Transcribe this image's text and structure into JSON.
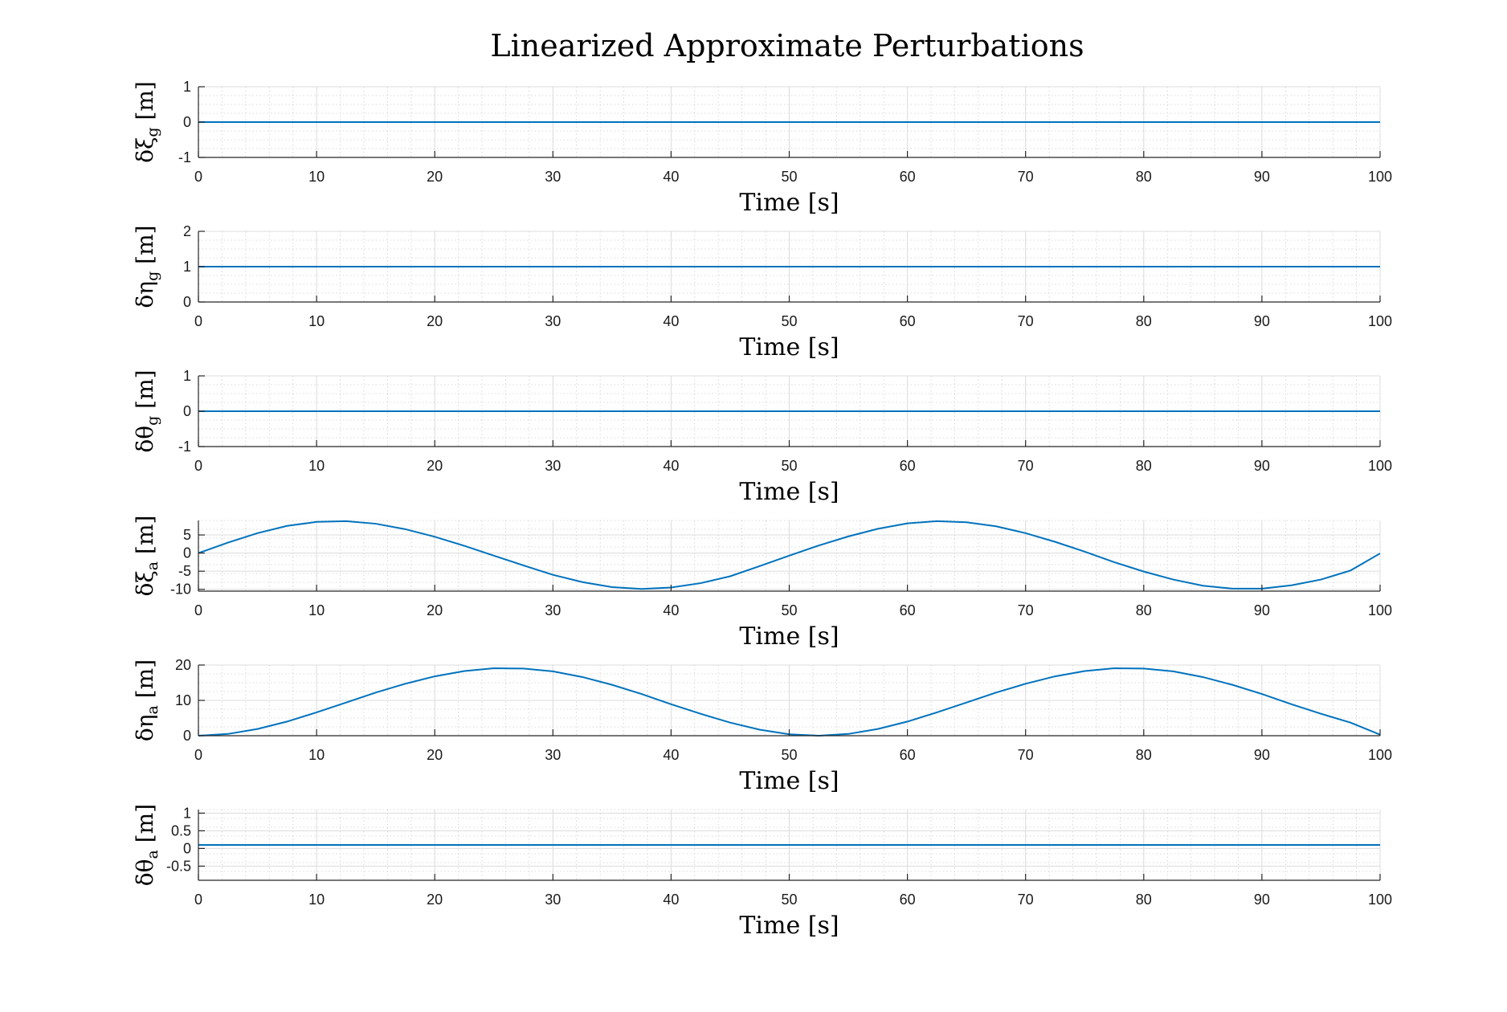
{
  "figure": {
    "title": "Linearized Approximate Perturbations",
    "colors": {
      "series": "#0072BD",
      "axis": "#262626",
      "grid": "#dcdcdc"
    }
  },
  "chart_data": [
    {
      "type": "line",
      "ylabel": {
        "symbol": "δξ",
        "sub": "g",
        "unit": " [m]"
      },
      "xlabel": "Time [s]",
      "xlim": [
        0,
        100
      ],
      "ylim": [
        -1,
        1
      ],
      "xticks": [
        "0",
        "10",
        "20",
        "30",
        "40",
        "50",
        "60",
        "70",
        "80",
        "90",
        "100"
      ],
      "yticks": [
        "-1",
        "0",
        "1"
      ],
      "grid": true,
      "series": [
        {
          "x": [
            0,
            100
          ],
          "y": [
            0,
            0
          ]
        }
      ]
    },
    {
      "type": "line",
      "ylabel": {
        "symbol": "δη",
        "sub": "g",
        "unit": " [m]"
      },
      "xlabel": "Time [s]",
      "xlim": [
        0,
        100
      ],
      "ylim": [
        0,
        2
      ],
      "xticks": [
        "0",
        "10",
        "20",
        "30",
        "40",
        "50",
        "60",
        "70",
        "80",
        "90",
        "100"
      ],
      "yticks": [
        "0",
        "1",
        "2"
      ],
      "grid": true,
      "series": [
        {
          "x": [
            0,
            100
          ],
          "y": [
            1,
            1
          ]
        }
      ]
    },
    {
      "type": "line",
      "ylabel": {
        "symbol": "δθ",
        "sub": "g",
        "unit": " [m]"
      },
      "xlabel": "Time [s]",
      "xlim": [
        0,
        100
      ],
      "ylim": [
        -1,
        1
      ],
      "xticks": [
        "0",
        "10",
        "20",
        "30",
        "40",
        "50",
        "60",
        "70",
        "80",
        "90",
        "100"
      ],
      "yticks": [
        "-1",
        "0",
        "1"
      ],
      "grid": true,
      "series": [
        {
          "x": [
            0,
            100
          ],
          "y": [
            0,
            0
          ]
        }
      ]
    },
    {
      "type": "line",
      "ylabel": {
        "symbol": "δξ",
        "sub": "a",
        "unit": " [m]"
      },
      "xlabel": "Time [s]",
      "xlim": [
        0,
        100
      ],
      "ylim": [
        -10.5,
        9
      ],
      "xticks": [
        "0",
        "10",
        "20",
        "30",
        "40",
        "50",
        "60",
        "70",
        "80",
        "90",
        "100"
      ],
      "yticks": [
        "-10",
        "-5",
        "0",
        "5"
      ],
      "grid": true,
      "series": [
        {
          "x": [
            0,
            2.5,
            5,
            7.5,
            10,
            12.5,
            15,
            17.5,
            20,
            22.5,
            25,
            27.5,
            30,
            32.5,
            35,
            37.5,
            40,
            42.5,
            45,
            47.5,
            50,
            52.5,
            55,
            57.5,
            60,
            62.5,
            65,
            67.5,
            70,
            72.5,
            75,
            77.5,
            80,
            82.5,
            85,
            87.5,
            90,
            92.5,
            95,
            97.5,
            100
          ],
          "y": [
            0,
            2.9,
            5.5,
            7.5,
            8.6,
            8.8,
            8.1,
            6.6,
            4.5,
            2.0,
            -0.7,
            -3.4,
            -6.0,
            -8.0,
            -9.4,
            -9.9,
            -9.5,
            -8.3,
            -6.4,
            -3.6,
            -0.7,
            2.1,
            4.6,
            6.7,
            8.2,
            8.8,
            8.5,
            7.4,
            5.5,
            3.1,
            0.4,
            -2.5,
            -5.1,
            -7.3,
            -9.0,
            -9.8,
            -9.8,
            -8.9,
            -7.3,
            -4.8,
            -0.1
          ]
        }
      ]
    },
    {
      "type": "line",
      "ylabel": {
        "symbol": "δη",
        "sub": "a",
        "unit": " [m]"
      },
      "xlabel": "Time [s]",
      "xlim": [
        0,
        100
      ],
      "ylim": [
        0,
        20
      ],
      "xticks": [
        "0",
        "10",
        "20",
        "30",
        "40",
        "50",
        "60",
        "70",
        "80",
        "90",
        "100"
      ],
      "yticks": [
        "0",
        "10",
        "20"
      ],
      "grid": true,
      "series": [
        {
          "x": [
            0,
            2.5,
            5,
            7.5,
            10,
            12.5,
            15,
            17.5,
            20,
            22.5,
            25,
            27.5,
            30,
            32.5,
            35,
            37.5,
            40,
            42.5,
            45,
            47.5,
            50,
            52.5,
            55,
            57.5,
            60,
            62.5,
            65,
            67.5,
            70,
            72.5,
            75,
            77.5,
            80,
            82.5,
            85,
            87.5,
            90,
            92.5,
            95,
            97.5,
            100
          ],
          "y": [
            0,
            0.5,
            1.9,
            4.0,
            6.6,
            9.4,
            12.2,
            14.7,
            16.8,
            18.3,
            19.1,
            19.0,
            18.2,
            16.6,
            14.4,
            11.8,
            8.9,
            6.2,
            3.7,
            1.7,
            0.4,
            0,
            0.5,
            1.9,
            4.0,
            6.6,
            9.4,
            12.2,
            14.7,
            16.8,
            18.3,
            19.1,
            19.0,
            18.2,
            16.6,
            14.4,
            11.8,
            8.9,
            6.2,
            3.7,
            0.3
          ]
        }
      ]
    },
    {
      "type": "line",
      "ylabel": {
        "symbol": "δθ",
        "sub": "a",
        "unit": " [m]"
      },
      "xlabel": "Time [s]",
      "xlim": [
        0,
        100
      ],
      "ylim": [
        -0.9,
        1.1
      ],
      "xticks": [
        "0",
        "10",
        "20",
        "30",
        "40",
        "50",
        "60",
        "70",
        "80",
        "90",
        "100"
      ],
      "yticks": [
        "-0.5",
        "0",
        "0.5",
        "1"
      ],
      "grid": true,
      "series": [
        {
          "x": [
            0,
            100
          ],
          "y": [
            0.1,
            0.1
          ]
        }
      ]
    }
  ]
}
